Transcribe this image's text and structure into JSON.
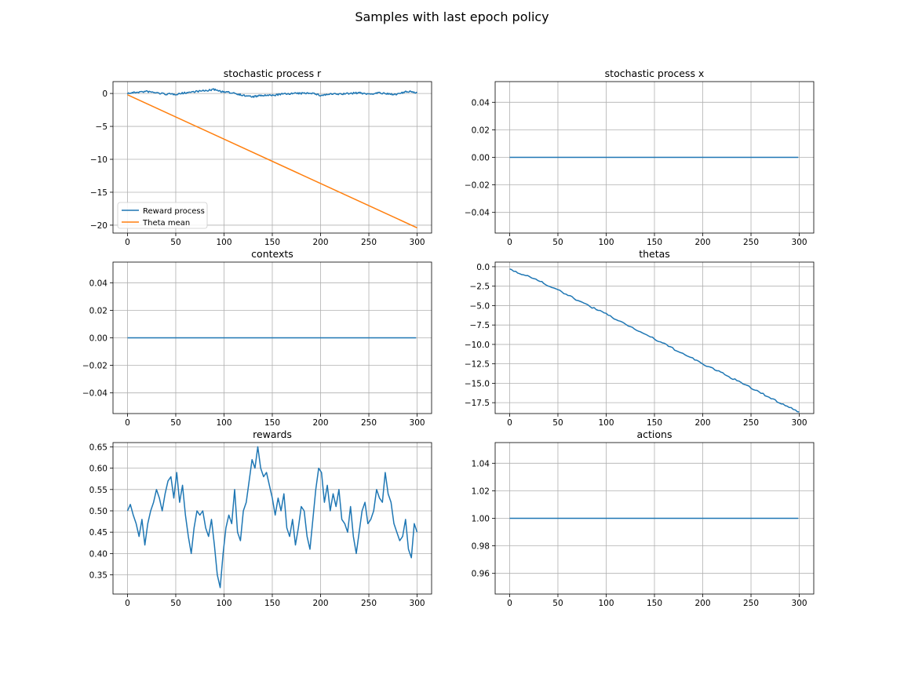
{
  "figure": {
    "suptitle": "Samples with last epoch policy"
  },
  "colors": {
    "series1": "#1f77b4",
    "series2": "#ff7f0e",
    "grid": "#b0b0b0",
    "axis": "#000000"
  },
  "chart_data": [
    {
      "type": "line",
      "title": "stochastic process r",
      "xlim": [
        -15,
        315
      ],
      "ylim": [
        -21.2,
        1.8
      ],
      "xticks": [
        0,
        50,
        100,
        150,
        200,
        250,
        300
      ],
      "xtick_labels": [
        "0",
        "50",
        "100",
        "150",
        "200",
        "250",
        "300"
      ],
      "yticks": [
        0,
        -5,
        -10,
        -15,
        -20
      ],
      "ytick_labels": [
        "0",
        "−5",
        "−10",
        "−15",
        "−20"
      ],
      "grid": true,
      "legend": {
        "placement": "lower-left",
        "entries": [
          "Reward process",
          "Theta mean"
        ]
      },
      "series": [
        {
          "name": "Reward process",
          "color": "#1f77b4",
          "noisy": true,
          "x": [
            0,
            10,
            20,
            30,
            40,
            50,
            60,
            70,
            80,
            90,
            100,
            110,
            120,
            130,
            140,
            150,
            160,
            170,
            180,
            190,
            200,
            210,
            220,
            230,
            240,
            250,
            260,
            270,
            280,
            290,
            300
          ],
          "y": [
            0.0,
            0.2,
            0.3,
            0.1,
            -0.1,
            -0.1,
            0.1,
            0.3,
            0.4,
            0.6,
            0.2,
            0.1,
            -0.3,
            -0.5,
            -0.3,
            -0.3,
            -0.1,
            0.0,
            0.0,
            0.1,
            -0.3,
            -0.1,
            -0.1,
            0.0,
            0.1,
            -0.1,
            0.1,
            -0.1,
            -0.1,
            0.3,
            0.1
          ]
        },
        {
          "name": "Theta mean",
          "color": "#ff7f0e",
          "noisy": false,
          "x": [
            0,
            300
          ],
          "y": [
            -0.2,
            -20.4
          ]
        }
      ]
    },
    {
      "type": "line",
      "title": "stochastic process x",
      "xlim": [
        -15,
        315
      ],
      "ylim": [
        -0.055,
        0.055
      ],
      "xticks": [
        0,
        50,
        100,
        150,
        200,
        250,
        300
      ],
      "xtick_labels": [
        "0",
        "50",
        "100",
        "150",
        "200",
        "250",
        "300"
      ],
      "yticks": [
        0.04,
        0.02,
        0.0,
        -0.02,
        -0.04
      ],
      "ytick_labels": [
        "0.04",
        "0.02",
        "0.00",
        "−0.02",
        "−0.04"
      ],
      "grid": true,
      "series": [
        {
          "color": "#1f77b4",
          "noisy": false,
          "x": [
            0,
            299
          ],
          "y": [
            0.0,
            0.0
          ]
        }
      ]
    },
    {
      "type": "line",
      "title": "contexts",
      "xlim": [
        -15,
        315
      ],
      "ylim": [
        -0.055,
        0.055
      ],
      "xticks": [
        0,
        50,
        100,
        150,
        200,
        250,
        300
      ],
      "xtick_labels": [
        "0",
        "50",
        "100",
        "150",
        "200",
        "250",
        "300"
      ],
      "yticks": [
        0.04,
        0.02,
        0.0,
        -0.02,
        -0.04
      ],
      "ytick_labels": [
        "0.04",
        "0.02",
        "0.00",
        "−0.02",
        "−0.04"
      ],
      "grid": true,
      "series": [
        {
          "color": "#1f77b4",
          "noisy": false,
          "x": [
            0,
            299
          ],
          "y": [
            0.0,
            0.0
          ]
        }
      ]
    },
    {
      "type": "line",
      "title": "thetas",
      "xlim": [
        -15,
        315
      ],
      "ylim": [
        -18.9,
        0.6
      ],
      "xticks": [
        0,
        50,
        100,
        150,
        200,
        250,
        300
      ],
      "xtick_labels": [
        "0",
        "50",
        "100",
        "150",
        "200",
        "250",
        "300"
      ],
      "yticks": [
        0.0,
        -2.5,
        -5.0,
        -7.5,
        -10.0,
        -12.5,
        -15.0,
        -17.5
      ],
      "ytick_labels": [
        "0.0",
        "−2.5",
        "−5.0",
        "−7.5",
        "−10.0",
        "−12.5",
        "−15.0",
        "−17.5"
      ],
      "grid": true,
      "series": [
        {
          "color": "#1f77b4",
          "noisy": true,
          "x": [
            0,
            25,
            50,
            75,
            100,
            125,
            150,
            175,
            200,
            225,
            250,
            275,
            300
          ],
          "y": [
            -0.3,
            -1.5,
            -3.0,
            -4.6,
            -6.1,
            -7.7,
            -9.3,
            -10.9,
            -12.5,
            -14.0,
            -15.6,
            -17.2,
            -18.7
          ]
        }
      ]
    },
    {
      "type": "line",
      "title": "rewards",
      "xlim": [
        -15,
        315
      ],
      "ylim": [
        0.305,
        0.66
      ],
      "xticks": [
        0,
        50,
        100,
        150,
        200,
        250,
        300
      ],
      "xtick_labels": [
        "0",
        "50",
        "100",
        "150",
        "200",
        "250",
        "300"
      ],
      "yticks": [
        0.65,
        0.6,
        0.55,
        0.5,
        0.45,
        0.4,
        0.35
      ],
      "ytick_labels": [
        "0.65",
        "0.60",
        "0.55",
        "0.50",
        "0.45",
        "0.40",
        "0.35"
      ],
      "grid": true,
      "series": [
        {
          "color": "#1f77b4",
          "noisy": false,
          "x": [
            0,
            3,
            6,
            9,
            12,
            15,
            18,
            21,
            24,
            27,
            30,
            33,
            36,
            39,
            42,
            45,
            48,
            51,
            54,
            57,
            60,
            63,
            66,
            69,
            72,
            75,
            78,
            81,
            84,
            87,
            90,
            93,
            96,
            99,
            102,
            105,
            108,
            111,
            114,
            117,
            120,
            123,
            126,
            129,
            132,
            135,
            138,
            141,
            144,
            147,
            150,
            153,
            156,
            159,
            162,
            165,
            168,
            171,
            174,
            177,
            180,
            183,
            186,
            189,
            192,
            195,
            198,
            201,
            204,
            207,
            210,
            213,
            216,
            219,
            222,
            225,
            228,
            231,
            234,
            237,
            240,
            243,
            246,
            249,
            252,
            255,
            258,
            261,
            264,
            267,
            270,
            273,
            276,
            279,
            282,
            285,
            288,
            291,
            294,
            297,
            300
          ],
          "y": [
            0.5,
            0.515,
            0.49,
            0.47,
            0.44,
            0.48,
            0.42,
            0.47,
            0.5,
            0.52,
            0.55,
            0.53,
            0.5,
            0.54,
            0.57,
            0.58,
            0.53,
            0.59,
            0.52,
            0.56,
            0.49,
            0.44,
            0.4,
            0.46,
            0.5,
            0.49,
            0.5,
            0.46,
            0.44,
            0.48,
            0.42,
            0.35,
            0.32,
            0.4,
            0.46,
            0.49,
            0.47,
            0.55,
            0.45,
            0.43,
            0.5,
            0.52,
            0.57,
            0.62,
            0.6,
            0.65,
            0.6,
            0.58,
            0.59,
            0.56,
            0.53,
            0.49,
            0.53,
            0.5,
            0.54,
            0.46,
            0.44,
            0.48,
            0.42,
            0.46,
            0.51,
            0.5,
            0.44,
            0.41,
            0.48,
            0.55,
            0.6,
            0.59,
            0.52,
            0.56,
            0.5,
            0.54,
            0.51,
            0.55,
            0.48,
            0.47,
            0.45,
            0.51,
            0.44,
            0.4,
            0.45,
            0.5,
            0.52,
            0.47,
            0.48,
            0.5,
            0.55,
            0.53,
            0.52,
            0.59,
            0.54,
            0.52,
            0.47,
            0.45,
            0.43,
            0.44,
            0.48,
            0.41,
            0.39,
            0.47,
            0.45
          ]
        }
      ]
    },
    {
      "type": "line",
      "title": "actions",
      "xlim": [
        -15,
        315
      ],
      "ylim": [
        0.945,
        1.055
      ],
      "xticks": [
        0,
        50,
        100,
        150,
        200,
        250,
        300
      ],
      "xtick_labels": [
        "0",
        "50",
        "100",
        "150",
        "200",
        "250",
        "300"
      ],
      "yticks": [
        1.04,
        1.02,
        1.0,
        0.98,
        0.96
      ],
      "ytick_labels": [
        "1.04",
        "1.02",
        "1.00",
        "0.98",
        "0.96"
      ],
      "grid": true,
      "series": [
        {
          "color": "#1f77b4",
          "noisy": false,
          "x": [
            0,
            299
          ],
          "y": [
            1.0,
            1.0
          ]
        }
      ]
    }
  ]
}
